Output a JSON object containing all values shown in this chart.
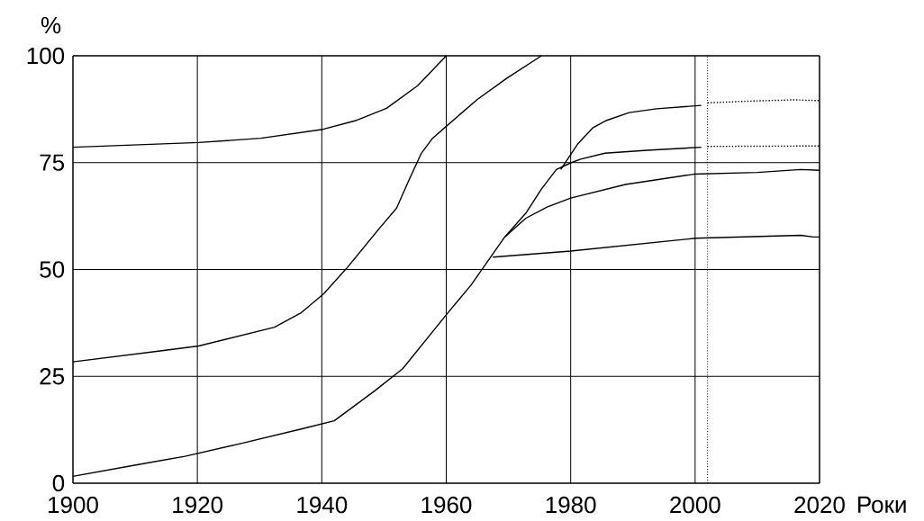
{
  "chart_data": {
    "type": "line",
    "xlabel": "Роки",
    "ylabel": "%",
    "xlim": [
      1900,
      2020
    ],
    "ylim": [
      0,
      100
    ],
    "xticks": [
      1900,
      1920,
      1940,
      1960,
      1980,
      2000,
      2020
    ],
    "yticks": [
      0,
      25,
      50,
      75,
      100
    ],
    "grid": true,
    "marker": "none",
    "line_style": "solid",
    "ref_lines": [
      {
        "axis": "x",
        "value": 2002,
        "line_style": "dotted",
        "color": "#000000"
      }
    ],
    "series": [
      {
        "color": "#000000",
        "x": [
          1900,
          1909.5,
          1918,
          1927,
          1937,
          1942,
          1948.5,
          1953,
          1960,
          1964,
          1969.4,
          1972.8,
          1975.3,
          1977.7,
          1980.1,
          1981.6,
          1985.5,
          1992.3,
          2001
        ],
        "values": [
          1.6,
          4.1,
          6.3,
          9.3,
          12.8,
          14.6,
          21.6,
          26.8,
          39.4,
          46.4,
          57.6,
          63.2,
          68.8,
          73.4,
          75,
          75.8,
          77.2,
          77.9,
          78.6
        ]
      },
      {
        "color": "#000000",
        "x": [
          1969.4,
          1972.8,
          1976.2,
          1980,
          1988.8,
          1999.8,
          2010,
          2017,
          2020
        ],
        "values": [
          57.6,
          62,
          64.6,
          66.7,
          69.9,
          72.3,
          72.7,
          73.4,
          73.2
        ]
      },
      {
        "color": "#000000",
        "x": [
          1978.4,
          1981.1,
          1983.6,
          1985.8,
          1989.4,
          1993.8,
          2001
        ],
        "values": [
          73.4,
          79.3,
          83.2,
          84.9,
          86.7,
          87.6,
          88.4
        ]
      },
      {
        "color": "#000000",
        "x": [
          1967.5,
          1980,
          2000,
          2017,
          2019,
          2020
        ],
        "values": [
          52.9,
          54.3,
          57.3,
          58,
          57.6,
          57.6
        ]
      },
      {
        "color": "#000000",
        "x": [
          1900,
          1914.3,
          1920.2,
          1932.4,
          1936.6,
          1940.3,
          1944,
          1949.3,
          1952,
          1954,
          1956,
          1957.8,
          1960,
          1965,
          1969.7,
          1975.3
        ],
        "values": [
          28.4,
          31,
          32.1,
          36.5,
          39.8,
          44.3,
          50.3,
          59.7,
          64.3,
          70.9,
          77.2,
          80.7,
          83.5,
          89.8,
          94.7,
          100
        ]
      },
      {
        "color": "#000000",
        "x": [
          1900,
          1920.2,
          1930.2,
          1940.2,
          1945.6,
          1950.4,
          1955.4,
          1960
        ],
        "values": [
          78.6,
          79.7,
          80.7,
          82.8,
          84.9,
          87.7,
          93,
          100
        ]
      },
      {
        "color": "#000000",
        "line_style": "dotted",
        "x": [
          2002,
          2009,
          2016,
          2020
        ],
        "values": [
          89,
          89.4,
          89.7,
          89.5
        ]
      },
      {
        "color": "#000000",
        "line_style": "dotted",
        "x": [
          2002,
          2020
        ],
        "values": [
          78.8,
          78.9
        ]
      }
    ]
  }
}
